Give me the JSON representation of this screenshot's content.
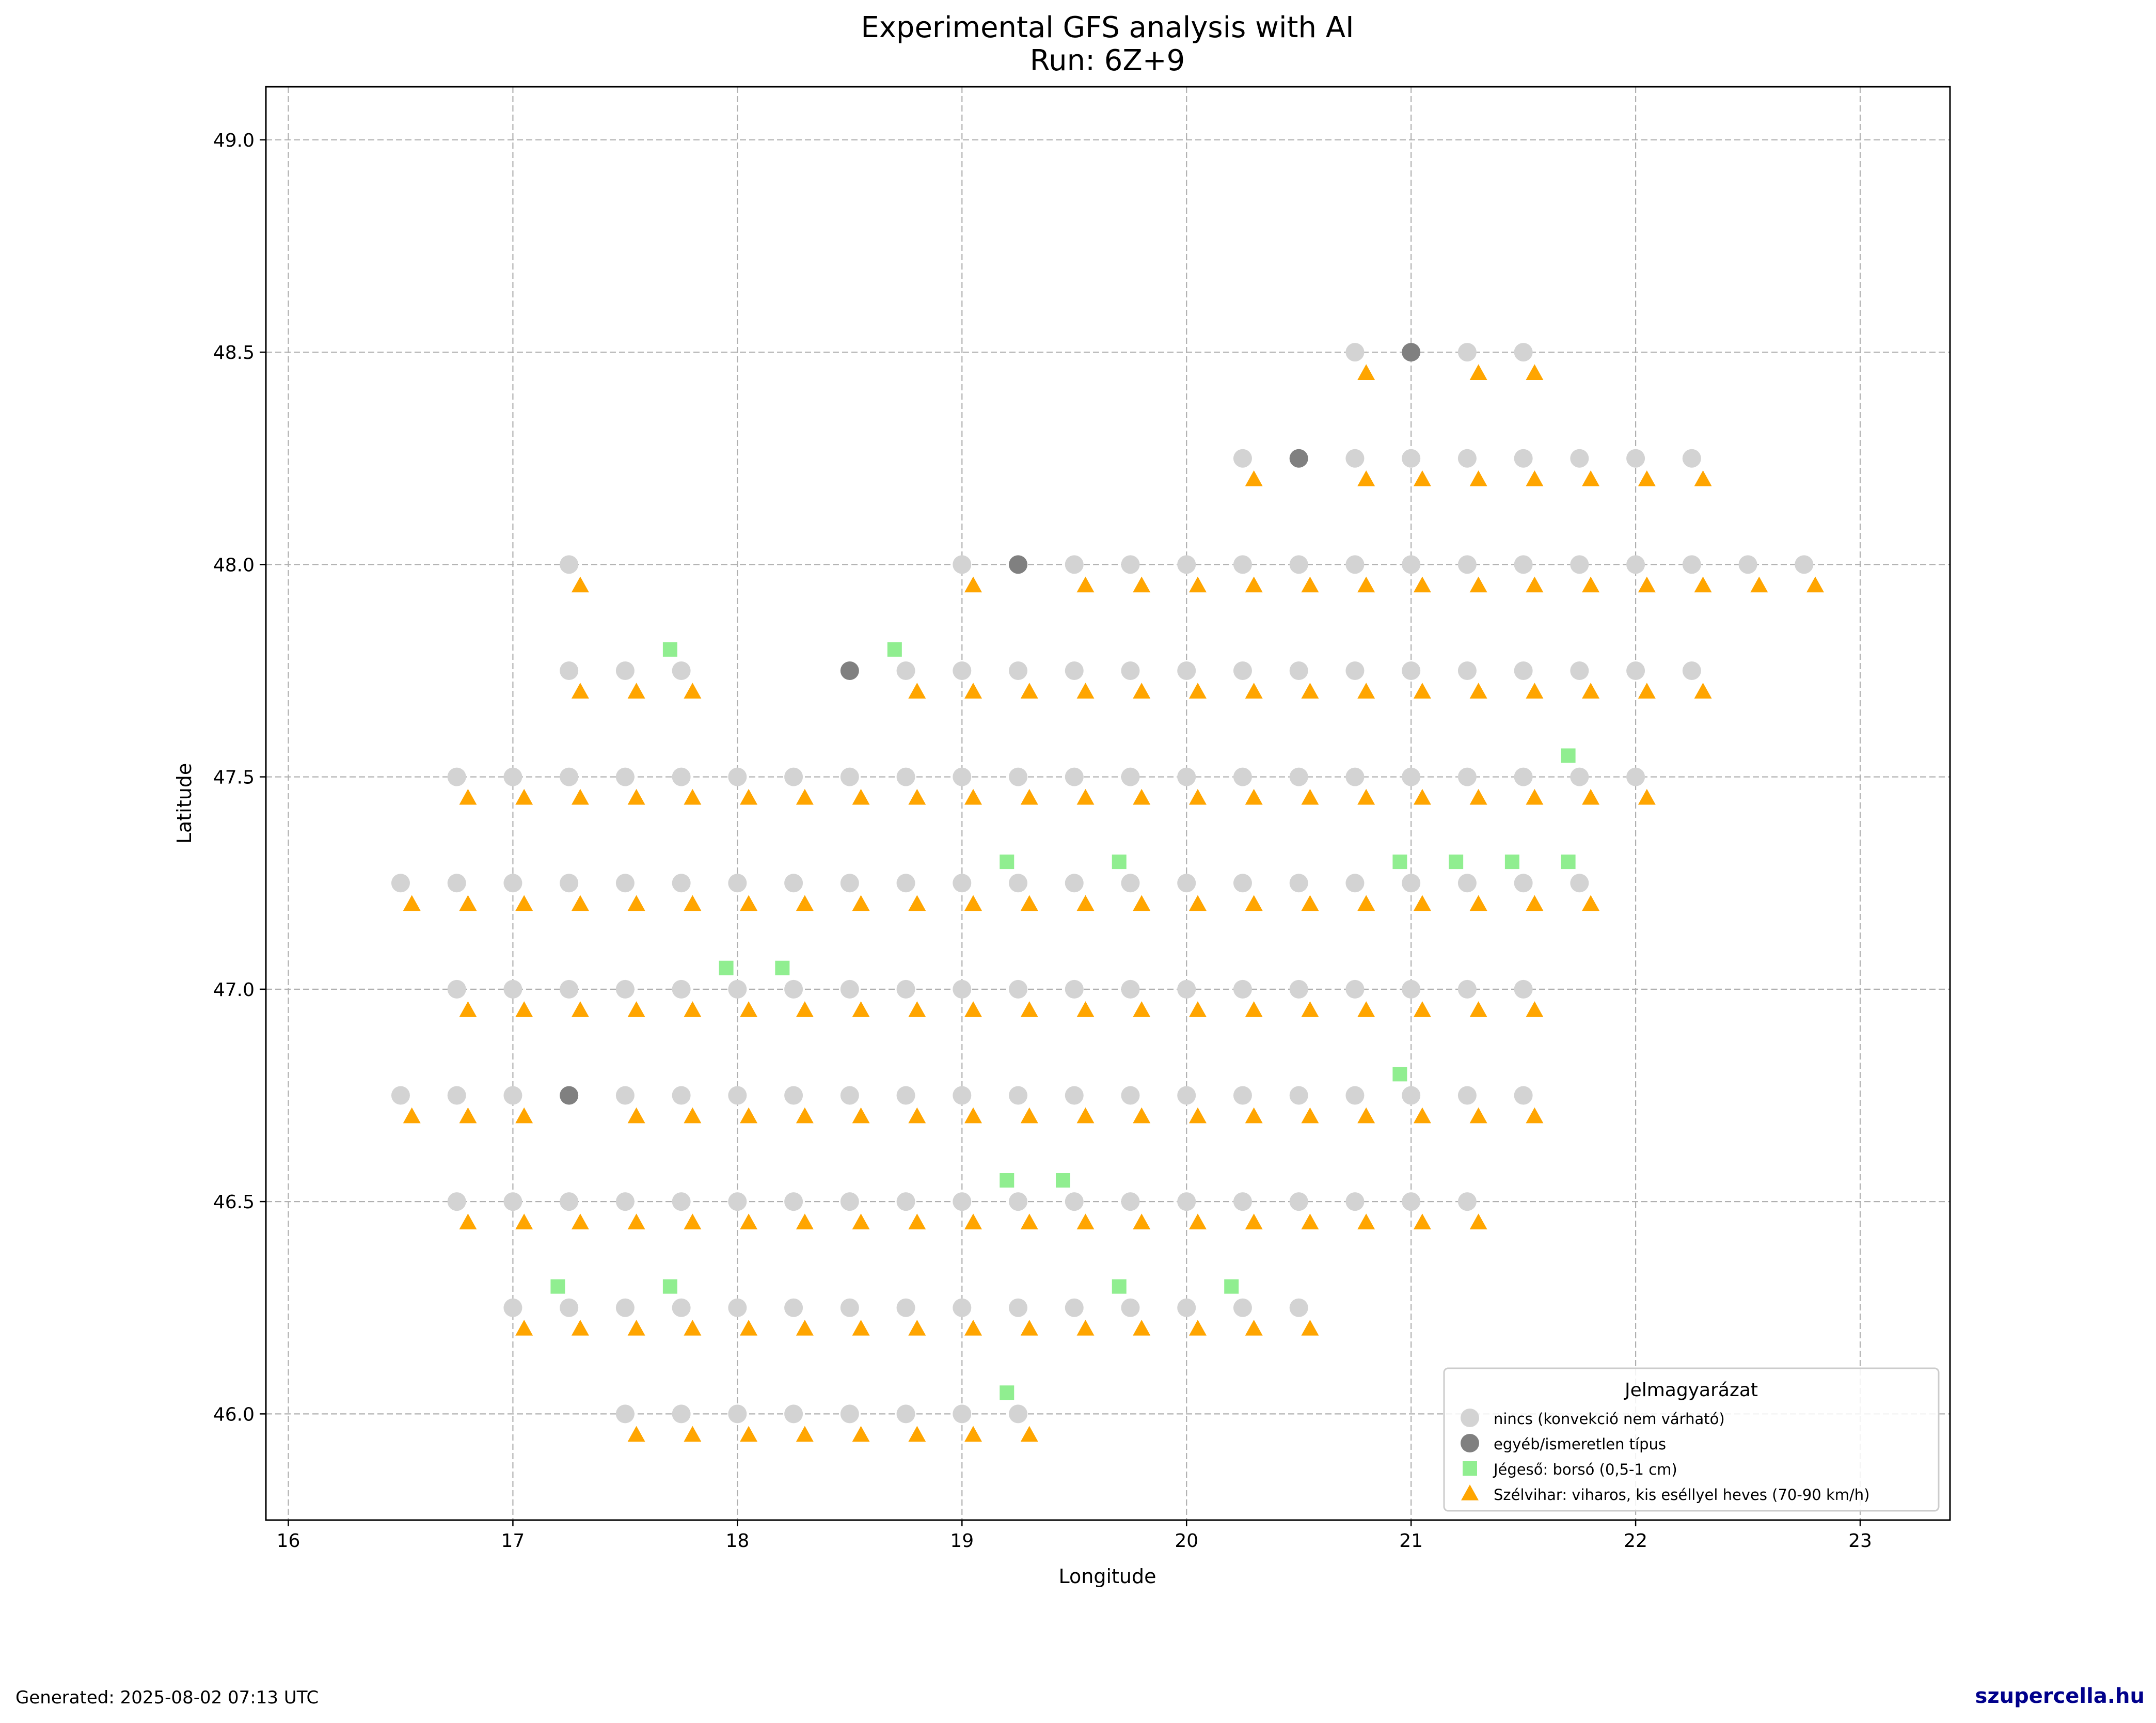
{
  "footer": {
    "generated": "Generated: 2025-08-02 07:13 UTC",
    "brand": "szupercella.hu"
  },
  "chart_data": {
    "type": "scatter",
    "title": "Experimental GFS analysis with AI",
    "subtitle": "Run: 6Z+9",
    "xlabel": "Longitude",
    "ylabel": "Latitude",
    "xlim": [
      15.9,
      23.4
    ],
    "ylim": [
      45.75,
      49.125
    ],
    "xticks": [
      "16",
      "17",
      "18",
      "19",
      "20",
      "21",
      "22",
      "23"
    ],
    "yticks": [
      "46.0",
      "46.5",
      "47.0",
      "47.5",
      "48.0",
      "48.5",
      "49.0"
    ],
    "grid": true,
    "legend": {
      "title": "Jelmagyarázat",
      "placement": "lower-right"
    },
    "series": [
      {
        "name": "nincs (konvekció nem várható)",
        "marker": "circle",
        "color": "#d3d3d3",
        "rows": [
          {
            "lat": 48.5,
            "lons": [
              20.75,
              21.25,
              21.5
            ]
          },
          {
            "lat": 48.25,
            "lons": [
              20.25,
              20.75,
              21.0,
              21.25,
              21.5,
              21.75,
              22.0,
              22.25
            ]
          },
          {
            "lat": 48.0,
            "lons": [
              17.25,
              19.0,
              19.5,
              19.75,
              20.0,
              20.25,
              20.5,
              20.75,
              21.0,
              21.25,
              21.5,
              21.75,
              22.0,
              22.25,
              22.5,
              22.75
            ]
          },
          {
            "lat": 47.75,
            "lons": [
              17.25,
              17.5,
              17.75,
              18.75,
              19.0,
              19.25,
              19.5,
              19.75,
              20.0,
              20.25,
              20.5,
              20.75,
              21.0,
              21.25,
              21.5,
              21.75,
              22.0,
              22.25
            ]
          },
          {
            "lat": 47.5,
            "lons": [
              16.75,
              17.0,
              17.25,
              17.5,
              17.75,
              18.0,
              18.25,
              18.5,
              18.75,
              19.0,
              19.25,
              19.5,
              19.75,
              20.0,
              20.25,
              20.5,
              20.75,
              21.0,
              21.25,
              21.5,
              21.75,
              22.0
            ]
          },
          {
            "lat": 47.25,
            "lons": [
              16.5,
              16.75,
              17.0,
              17.25,
              17.5,
              17.75,
              18.0,
              18.25,
              18.5,
              18.75,
              19.0,
              19.25,
              19.5,
              19.75,
              20.0,
              20.25,
              20.5,
              20.75,
              21.0,
              21.25,
              21.5,
              21.75
            ]
          },
          {
            "lat": 47.0,
            "lons": [
              16.75,
              17.0,
              17.25,
              17.5,
              17.75,
              18.0,
              18.25,
              18.5,
              18.75,
              19.0,
              19.25,
              19.5,
              19.75,
              20.0,
              20.25,
              20.5,
              20.75,
              21.0,
              21.25,
              21.5
            ]
          },
          {
            "lat": 46.75,
            "lons": [
              16.5,
              16.75,
              17.0,
              17.5,
              17.75,
              18.0,
              18.25,
              18.5,
              18.75,
              19.0,
              19.25,
              19.5,
              19.75,
              20.0,
              20.25,
              20.5,
              20.75,
              21.0,
              21.25,
              21.5
            ]
          },
          {
            "lat": 46.5,
            "lons": [
              16.75,
              17.0,
              17.25,
              17.5,
              17.75,
              18.0,
              18.25,
              18.5,
              18.75,
              19.0,
              19.25,
              19.5,
              19.75,
              20.0,
              20.25,
              20.5,
              20.75,
              21.0,
              21.25
            ]
          },
          {
            "lat": 46.25,
            "lons": [
              17.0,
              17.25,
              17.5,
              17.75,
              18.0,
              18.25,
              18.5,
              18.75,
              19.0,
              19.25,
              19.5,
              19.75,
              20.0,
              20.25,
              20.5
            ]
          },
          {
            "lat": 46.0,
            "lons": [
              17.5,
              17.75,
              18.0,
              18.25,
              18.5,
              18.75,
              19.0,
              19.25
            ]
          }
        ]
      },
      {
        "name": "egyéb/ismeretlen típus",
        "marker": "circle",
        "color": "#808080",
        "points": [
          [
            21.0,
            48.5
          ],
          [
            20.5,
            48.25
          ],
          [
            19.25,
            48.0
          ],
          [
            18.5,
            47.75
          ],
          [
            17.25,
            46.75
          ]
        ]
      },
      {
        "name": "Jégeső: borsó (0,5-1 cm)",
        "marker": "square",
        "color": "#90ee90",
        "points": [
          [
            17.7,
            47.8
          ],
          [
            18.7,
            47.8
          ],
          [
            21.7,
            47.55
          ],
          [
            19.2,
            47.3
          ],
          [
            19.7,
            47.3
          ],
          [
            20.95,
            47.3
          ],
          [
            21.2,
            47.3
          ],
          [
            21.45,
            47.3
          ],
          [
            21.7,
            47.3
          ],
          [
            17.95,
            47.05
          ],
          [
            18.2,
            47.05
          ],
          [
            20.95,
            46.8
          ],
          [
            19.2,
            46.55
          ],
          [
            19.45,
            46.55
          ],
          [
            17.2,
            46.3
          ],
          [
            17.7,
            46.3
          ],
          [
            19.7,
            46.3
          ],
          [
            20.2,
            46.3
          ],
          [
            19.2,
            46.05
          ]
        ]
      },
      {
        "name": "Szélvihar: viharos, kis eséllyel heves (70-90 km/h)",
        "marker": "triangle",
        "color": "#ffa500",
        "rows": [
          {
            "lat": 48.45,
            "lons": [
              20.8,
              21.3,
              21.55
            ]
          },
          {
            "lat": 48.2,
            "lons": [
              20.3,
              20.8,
              21.05,
              21.3,
              21.55,
              21.8,
              22.05,
              22.3
            ]
          },
          {
            "lat": 47.95,
            "lons": [
              17.3,
              19.05,
              19.55,
              19.8,
              20.05,
              20.3,
              20.55,
              20.8,
              21.05,
              21.3,
              21.55,
              21.8,
              22.05,
              22.3,
              22.55,
              22.8
            ]
          },
          {
            "lat": 47.7,
            "lons": [
              17.3,
              17.55,
              17.8,
              18.8,
              19.05,
              19.3,
              19.55,
              19.8,
              20.05,
              20.3,
              20.55,
              20.8,
              21.05,
              21.3,
              21.55,
              21.8,
              22.05,
              22.3
            ]
          },
          {
            "lat": 47.45,
            "lons": [
              16.8,
              17.05,
              17.3,
              17.55,
              17.8,
              18.05,
              18.3,
              18.55,
              18.8,
              19.05,
              19.3,
              19.55,
              19.8,
              20.05,
              20.3,
              20.55,
              20.8,
              21.05,
              21.3,
              21.55,
              21.8,
              22.05
            ]
          },
          {
            "lat": 47.2,
            "lons": [
              16.55,
              16.8,
              17.05,
              17.3,
              17.55,
              17.8,
              18.05,
              18.3,
              18.55,
              18.8,
              19.05,
              19.3,
              19.55,
              19.8,
              20.05,
              20.3,
              20.55,
              20.8,
              21.05,
              21.3,
              21.55,
              21.8
            ]
          },
          {
            "lat": 46.95,
            "lons": [
              16.8,
              17.05,
              17.3,
              17.55,
              17.8,
              18.05,
              18.3,
              18.55,
              18.8,
              19.05,
              19.3,
              19.55,
              19.8,
              20.05,
              20.3,
              20.55,
              20.8,
              21.05,
              21.3,
              21.55
            ]
          },
          {
            "lat": 46.7,
            "lons": [
              16.55,
              16.8,
              17.05,
              17.55,
              17.8,
              18.05,
              18.3,
              18.55,
              18.8,
              19.05,
              19.3,
              19.55,
              19.8,
              20.05,
              20.3,
              20.55,
              20.8,
              21.05,
              21.3,
              21.55
            ]
          },
          {
            "lat": 46.45,
            "lons": [
              16.8,
              17.05,
              17.3,
              17.55,
              17.8,
              18.05,
              18.3,
              18.55,
              18.8,
              19.05,
              19.3,
              19.55,
              19.8,
              20.05,
              20.3,
              20.55,
              20.8,
              21.05,
              21.3
            ]
          },
          {
            "lat": 46.2,
            "lons": [
              17.05,
              17.3,
              17.55,
              17.8,
              18.05,
              18.3,
              18.55,
              18.8,
              19.05,
              19.3,
              19.55,
              19.8,
              20.05,
              20.3,
              20.55
            ]
          },
          {
            "lat": 45.95,
            "lons": [
              17.55,
              17.8,
              18.05,
              18.3,
              18.55,
              18.8,
              19.05,
              19.3
            ]
          }
        ]
      }
    ]
  }
}
